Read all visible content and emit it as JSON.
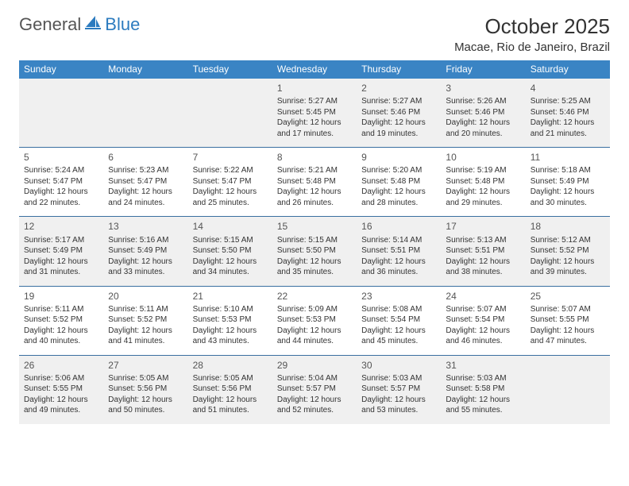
{
  "logo": {
    "general": "General",
    "blue": "Blue"
  },
  "title": "October 2025",
  "location": "Macae, Rio de Janeiro, Brazil",
  "colors": {
    "header_bg": "#3a84c4",
    "divider": "#3a6fa0",
    "shaded": "#f0f0f0",
    "logo_blue": "#2c7bbf"
  },
  "day_names": [
    "Sunday",
    "Monday",
    "Tuesday",
    "Wednesday",
    "Thursday",
    "Friday",
    "Saturday"
  ],
  "weeks": [
    [
      {
        "blank": true
      },
      {
        "blank": true
      },
      {
        "blank": true
      },
      {
        "n": "1",
        "sr": "Sunrise: 5:27 AM",
        "ss": "Sunset: 5:45 PM",
        "d1": "Daylight: 12 hours",
        "d2": "and 17 minutes."
      },
      {
        "n": "2",
        "sr": "Sunrise: 5:27 AM",
        "ss": "Sunset: 5:46 PM",
        "d1": "Daylight: 12 hours",
        "d2": "and 19 minutes."
      },
      {
        "n": "3",
        "sr": "Sunrise: 5:26 AM",
        "ss": "Sunset: 5:46 PM",
        "d1": "Daylight: 12 hours",
        "d2": "and 20 minutes."
      },
      {
        "n": "4",
        "sr": "Sunrise: 5:25 AM",
        "ss": "Sunset: 5:46 PM",
        "d1": "Daylight: 12 hours",
        "d2": "and 21 minutes."
      }
    ],
    [
      {
        "n": "5",
        "sr": "Sunrise: 5:24 AM",
        "ss": "Sunset: 5:47 PM",
        "d1": "Daylight: 12 hours",
        "d2": "and 22 minutes."
      },
      {
        "n": "6",
        "sr": "Sunrise: 5:23 AM",
        "ss": "Sunset: 5:47 PM",
        "d1": "Daylight: 12 hours",
        "d2": "and 24 minutes."
      },
      {
        "n": "7",
        "sr": "Sunrise: 5:22 AM",
        "ss": "Sunset: 5:47 PM",
        "d1": "Daylight: 12 hours",
        "d2": "and 25 minutes."
      },
      {
        "n": "8",
        "sr": "Sunrise: 5:21 AM",
        "ss": "Sunset: 5:48 PM",
        "d1": "Daylight: 12 hours",
        "d2": "and 26 minutes."
      },
      {
        "n": "9",
        "sr": "Sunrise: 5:20 AM",
        "ss": "Sunset: 5:48 PM",
        "d1": "Daylight: 12 hours",
        "d2": "and 28 minutes."
      },
      {
        "n": "10",
        "sr": "Sunrise: 5:19 AM",
        "ss": "Sunset: 5:48 PM",
        "d1": "Daylight: 12 hours",
        "d2": "and 29 minutes."
      },
      {
        "n": "11",
        "sr": "Sunrise: 5:18 AM",
        "ss": "Sunset: 5:49 PM",
        "d1": "Daylight: 12 hours",
        "d2": "and 30 minutes."
      }
    ],
    [
      {
        "n": "12",
        "sr": "Sunrise: 5:17 AM",
        "ss": "Sunset: 5:49 PM",
        "d1": "Daylight: 12 hours",
        "d2": "and 31 minutes."
      },
      {
        "n": "13",
        "sr": "Sunrise: 5:16 AM",
        "ss": "Sunset: 5:49 PM",
        "d1": "Daylight: 12 hours",
        "d2": "and 33 minutes."
      },
      {
        "n": "14",
        "sr": "Sunrise: 5:15 AM",
        "ss": "Sunset: 5:50 PM",
        "d1": "Daylight: 12 hours",
        "d2": "and 34 minutes."
      },
      {
        "n": "15",
        "sr": "Sunrise: 5:15 AM",
        "ss": "Sunset: 5:50 PM",
        "d1": "Daylight: 12 hours",
        "d2": "and 35 minutes."
      },
      {
        "n": "16",
        "sr": "Sunrise: 5:14 AM",
        "ss": "Sunset: 5:51 PM",
        "d1": "Daylight: 12 hours",
        "d2": "and 36 minutes."
      },
      {
        "n": "17",
        "sr": "Sunrise: 5:13 AM",
        "ss": "Sunset: 5:51 PM",
        "d1": "Daylight: 12 hours",
        "d2": "and 38 minutes."
      },
      {
        "n": "18",
        "sr": "Sunrise: 5:12 AM",
        "ss": "Sunset: 5:52 PM",
        "d1": "Daylight: 12 hours",
        "d2": "and 39 minutes."
      }
    ],
    [
      {
        "n": "19",
        "sr": "Sunrise: 5:11 AM",
        "ss": "Sunset: 5:52 PM",
        "d1": "Daylight: 12 hours",
        "d2": "and 40 minutes."
      },
      {
        "n": "20",
        "sr": "Sunrise: 5:11 AM",
        "ss": "Sunset: 5:52 PM",
        "d1": "Daylight: 12 hours",
        "d2": "and 41 minutes."
      },
      {
        "n": "21",
        "sr": "Sunrise: 5:10 AM",
        "ss": "Sunset: 5:53 PM",
        "d1": "Daylight: 12 hours",
        "d2": "and 43 minutes."
      },
      {
        "n": "22",
        "sr": "Sunrise: 5:09 AM",
        "ss": "Sunset: 5:53 PM",
        "d1": "Daylight: 12 hours",
        "d2": "and 44 minutes."
      },
      {
        "n": "23",
        "sr": "Sunrise: 5:08 AM",
        "ss": "Sunset: 5:54 PM",
        "d1": "Daylight: 12 hours",
        "d2": "and 45 minutes."
      },
      {
        "n": "24",
        "sr": "Sunrise: 5:07 AM",
        "ss": "Sunset: 5:54 PM",
        "d1": "Daylight: 12 hours",
        "d2": "and 46 minutes."
      },
      {
        "n": "25",
        "sr": "Sunrise: 5:07 AM",
        "ss": "Sunset: 5:55 PM",
        "d1": "Daylight: 12 hours",
        "d2": "and 47 minutes."
      }
    ],
    [
      {
        "n": "26",
        "sr": "Sunrise: 5:06 AM",
        "ss": "Sunset: 5:55 PM",
        "d1": "Daylight: 12 hours",
        "d2": "and 49 minutes."
      },
      {
        "n": "27",
        "sr": "Sunrise: 5:05 AM",
        "ss": "Sunset: 5:56 PM",
        "d1": "Daylight: 12 hours",
        "d2": "and 50 minutes."
      },
      {
        "n": "28",
        "sr": "Sunrise: 5:05 AM",
        "ss": "Sunset: 5:56 PM",
        "d1": "Daylight: 12 hours",
        "d2": "and 51 minutes."
      },
      {
        "n": "29",
        "sr": "Sunrise: 5:04 AM",
        "ss": "Sunset: 5:57 PM",
        "d1": "Daylight: 12 hours",
        "d2": "and 52 minutes."
      },
      {
        "n": "30",
        "sr": "Sunrise: 5:03 AM",
        "ss": "Sunset: 5:57 PM",
        "d1": "Daylight: 12 hours",
        "d2": "and 53 minutes."
      },
      {
        "n": "31",
        "sr": "Sunrise: 5:03 AM",
        "ss": "Sunset: 5:58 PM",
        "d1": "Daylight: 12 hours",
        "d2": "and 55 minutes."
      },
      {
        "blank": true
      }
    ]
  ]
}
